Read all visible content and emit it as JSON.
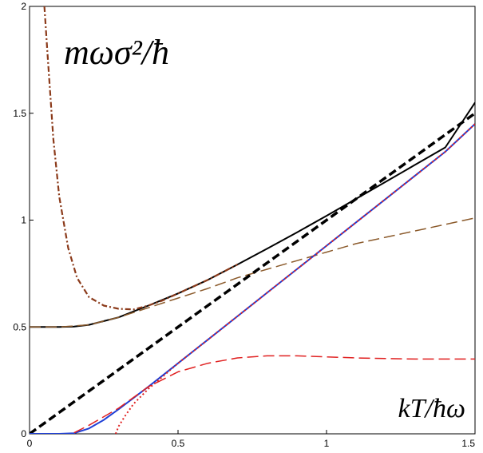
{
  "chart_data": {
    "type": "line",
    "title": "",
    "xlabel": "",
    "ylabel": "",
    "xlim": [
      0,
      1.5
    ],
    "ylim": [
      0,
      2
    ],
    "grid": false,
    "annotations": {
      "y_quantity": "mωσ²/ħ",
      "x_quantity": "kT/ħω"
    },
    "x_ticks": [
      0,
      0.5,
      1,
      1.5
    ],
    "x_tick_labels": [
      "0",
      "0.5",
      "1",
      "1.5"
    ],
    "y_ticks": [
      0,
      0.5,
      1,
      1.5,
      2
    ],
    "y_tick_labels": [
      "0",
      "0.5",
      "1",
      "1.5",
      "2"
    ],
    "series": [
      {
        "style": "solid",
        "color": "#000000",
        "x": [
          0,
          0.1,
          0.15,
          0.2,
          0.3,
          0.4,
          0.5,
          0.6,
          0.7,
          0.8,
          0.9,
          1.0,
          1.1,
          1.2,
          1.3,
          1.4,
          1.5
        ],
        "y": [
          0.5,
          0.5,
          0.502,
          0.51,
          0.545,
          0.6,
          0.657,
          0.72,
          0.792,
          0.866,
          0.942,
          1.02,
          1.1,
          1.18,
          1.26,
          1.34,
          1.55
        ]
      },
      {
        "style": "dash-dot",
        "color": "#8b3a1a",
        "x": [
          0.05,
          0.06,
          0.08,
          0.1,
          0.13,
          0.16,
          0.2,
          0.25,
          0.3,
          0.35,
          0.4,
          0.45,
          0.5,
          0.6,
          0.7
        ],
        "y": [
          2.0,
          1.79,
          1.38,
          1.11,
          0.87,
          0.73,
          0.64,
          0.6,
          0.585,
          0.582,
          0.6,
          0.625,
          0.657,
          0.72,
          0.792
        ]
      },
      {
        "style": "long-dash",
        "color": "#8b5a2b",
        "x": [
          0,
          0.1,
          0.2,
          0.3,
          0.4,
          0.5,
          0.6,
          0.7,
          0.8,
          0.9,
          1.0,
          1.1,
          1.2,
          1.3,
          1.4,
          1.5
        ],
        "y": [
          0.5,
          0.5,
          0.51,
          0.545,
          0.59,
          0.635,
          0.68,
          0.73,
          0.77,
          0.81,
          0.85,
          0.89,
          0.92,
          0.95,
          0.98,
          1.01
        ]
      },
      {
        "style": "heavy-dash",
        "color": "#000000",
        "x": [
          0,
          1.5
        ],
        "y": [
          0,
          1.5
        ]
      },
      {
        "style": "solid",
        "color": "#1f3fd6",
        "x": [
          0,
          0.1,
          0.15,
          0.2,
          0.25,
          0.3,
          0.4,
          0.5,
          0.6,
          0.7,
          0.8,
          0.9,
          1.0,
          1.1,
          1.2,
          1.3,
          1.4,
          1.5
        ],
        "y": [
          0,
          0,
          0.003,
          0.025,
          0.065,
          0.115,
          0.22,
          0.33,
          0.44,
          0.55,
          0.66,
          0.77,
          0.88,
          0.99,
          1.1,
          1.21,
          1.32,
          1.45
        ]
      },
      {
        "style": "dotted",
        "color": "#e02020",
        "x": [
          0.29,
          0.3,
          0.32,
          0.35,
          0.4,
          0.5,
          0.6,
          0.7,
          0.8,
          0.9,
          1.0,
          1.1,
          1.2,
          1.3,
          1.4,
          1.5
        ],
        "y": [
          0,
          0.035,
          0.08,
          0.14,
          0.21,
          0.33,
          0.44,
          0.55,
          0.66,
          0.77,
          0.88,
          0.99,
          1.1,
          1.21,
          1.32,
          1.45
        ]
      },
      {
        "style": "long-dash",
        "color": "#e02020",
        "x": [
          0.15,
          0.2,
          0.3,
          0.4,
          0.5,
          0.6,
          0.7,
          0.8,
          0.9,
          1.0,
          1.1,
          1.2,
          1.3,
          1.4,
          1.5
        ],
        "y": [
          0.005,
          0.04,
          0.12,
          0.22,
          0.29,
          0.33,
          0.355,
          0.365,
          0.365,
          0.36,
          0.355,
          0.352,
          0.35,
          0.35,
          0.35
        ]
      }
    ]
  }
}
